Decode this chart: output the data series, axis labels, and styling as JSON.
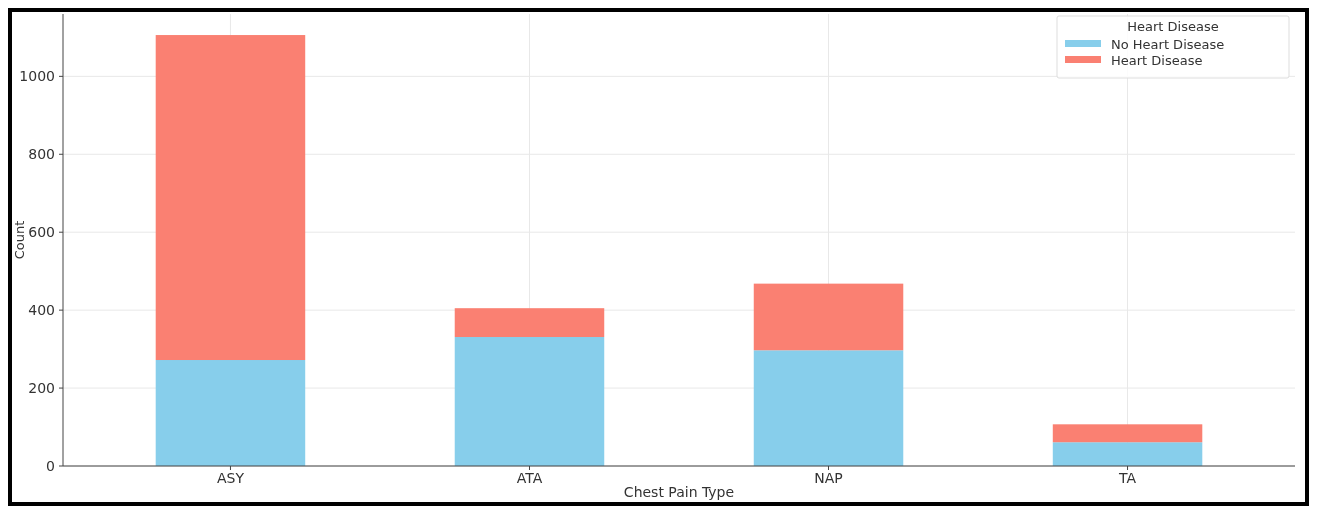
{
  "chart_data": {
    "type": "bar",
    "stacked": true,
    "xlabel": "Chest Pain Type",
    "ylabel": "Count",
    "legend_title": "Heart Disease",
    "categories": [
      "ASY",
      "ATA",
      "NAP",
      "TA"
    ],
    "series": [
      {
        "name": "No Heart Disease",
        "color": "#87ceeb",
        "values": [
          272,
          331,
          297,
          61
        ]
      },
      {
        "name": "Heart Disease",
        "color": "#fa8072",
        "values": [
          834,
          74,
          171,
          46
        ]
      }
    ],
    "ylim": [
      0,
      1160
    ],
    "yticks": [
      0,
      200,
      400,
      600,
      800,
      1000
    ],
    "grid": true,
    "legend": "top right"
  }
}
